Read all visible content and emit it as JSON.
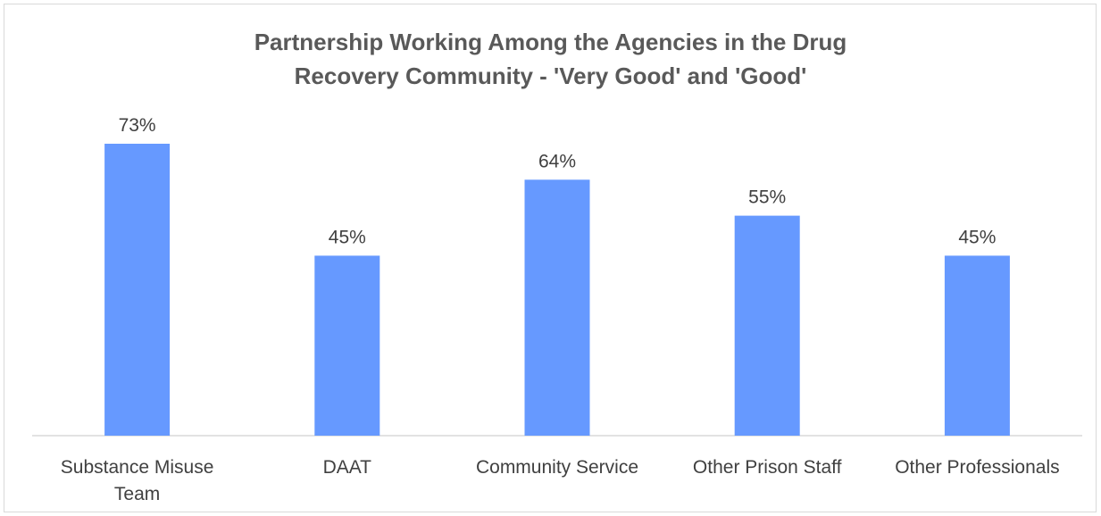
{
  "chart_data": {
    "type": "bar",
    "title": "Partnership Working Among the Agencies in the Drug Recovery Community - 'Very Good' and 'Good'",
    "title_lines": [
      "Partnership Working Among the Agencies in the Drug",
      "Recovery Community - 'Very Good' and 'Good'"
    ],
    "categories": [
      "Substance Misuse Team",
      "DAAT",
      "Community Service",
      "Other Prison Staff",
      "Other Professionals"
    ],
    "category_label_lines": [
      [
        "Substance Misuse",
        "Team"
      ],
      [
        "DAAT"
      ],
      [
        "Community Service"
      ],
      [
        "Other Prison Staff"
      ],
      [
        "Other Professionals"
      ]
    ],
    "values": [
      73,
      45,
      64,
      55,
      45
    ],
    "data_labels": [
      "73%",
      "45%",
      "64%",
      "55%",
      "45%"
    ],
    "unit": "%",
    "xlabel": "",
    "ylabel": "",
    "ylim": [
      0,
      80
    ],
    "grid": false,
    "legend": "none",
    "bar_color": "#6699ff"
  }
}
